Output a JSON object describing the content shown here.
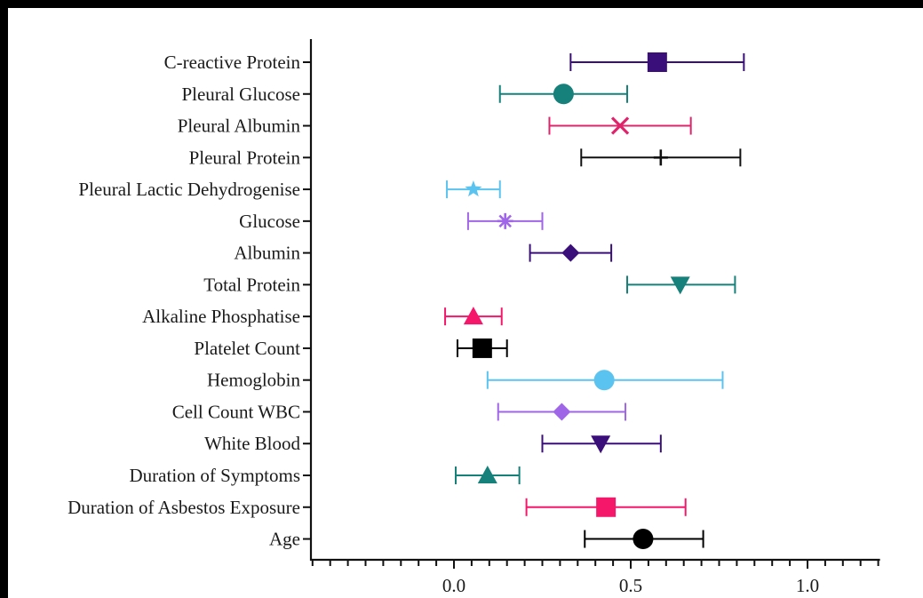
{
  "chart_data": {
    "type": "forest",
    "title": "",
    "xlabel": "",
    "ylabel": "",
    "xlim": [
      -0.4,
      1.2
    ],
    "xticks": [
      {
        "value": 0.0,
        "label": "0.0"
      },
      {
        "value": 0.5,
        "label": "0.5"
      },
      {
        "value": 1.0,
        "label": "1.0"
      }
    ],
    "minor_tick_step": 0.05,
    "grid": false,
    "legend": "none",
    "items": [
      {
        "label": "C-reactive Protein",
        "estimate": 0.575,
        "low": 0.33,
        "high": 0.82,
        "marker": "square",
        "color": "#3b0f7a"
      },
      {
        "label": "Pleural Glucose",
        "estimate": 0.31,
        "low": 0.13,
        "high": 0.49,
        "marker": "circle",
        "color": "#16807a"
      },
      {
        "label": "Pleural Albumin",
        "estimate": 0.47,
        "low": 0.27,
        "high": 0.67,
        "marker": "x",
        "color": "#e0246b"
      },
      {
        "label": "Pleural Protein",
        "estimate": 0.585,
        "low": 0.36,
        "high": 0.81,
        "marker": "plus",
        "color": "#111111"
      },
      {
        "label": "Pleural Lactic Dehydrogenise",
        "estimate": 0.055,
        "low": -0.02,
        "high": 0.13,
        "marker": "star",
        "color": "#5bc3f0"
      },
      {
        "label": "Glucose",
        "estimate": 0.145,
        "low": 0.04,
        "high": 0.25,
        "marker": "asterisk",
        "color": "#a066e8"
      },
      {
        "label": "Albumin",
        "estimate": 0.33,
        "low": 0.215,
        "high": 0.445,
        "marker": "diamond",
        "color": "#3b0f7a"
      },
      {
        "label": "Total Protein",
        "estimate": 0.64,
        "low": 0.49,
        "high": 0.795,
        "marker": "triangle-down",
        "color": "#16807a"
      },
      {
        "label": "Alkaline Phosphatise",
        "estimate": 0.055,
        "low": -0.025,
        "high": 0.135,
        "marker": "triangle-up",
        "color": "#f5176a"
      },
      {
        "label": "Platelet Count",
        "estimate": 0.08,
        "low": 0.01,
        "high": 0.15,
        "marker": "square",
        "color": "#000000"
      },
      {
        "label": "Hemoglobin",
        "estimate": 0.425,
        "low": 0.095,
        "high": 0.76,
        "marker": "circle",
        "color": "#5bc3f0"
      },
      {
        "label": "Cell Count WBC",
        "estimate": 0.305,
        "low": 0.125,
        "high": 0.485,
        "marker": "diamond",
        "color": "#a066e8"
      },
      {
        "label": "White Blood",
        "estimate": 0.415,
        "low": 0.25,
        "high": 0.585,
        "marker": "triangle-down",
        "color": "#3b0f7a"
      },
      {
        "label": "Duration of Symptoms",
        "estimate": 0.095,
        "low": 0.005,
        "high": 0.185,
        "marker": "triangle-up",
        "color": "#16807a"
      },
      {
        "label": "Duration of Asbestos Exposure",
        "estimate": 0.43,
        "low": 0.205,
        "high": 0.655,
        "marker": "square",
        "color": "#f5176a"
      },
      {
        "label": "Age",
        "estimate": 0.535,
        "low": 0.37,
        "high": 0.705,
        "marker": "circle",
        "color": "#000000"
      }
    ]
  }
}
